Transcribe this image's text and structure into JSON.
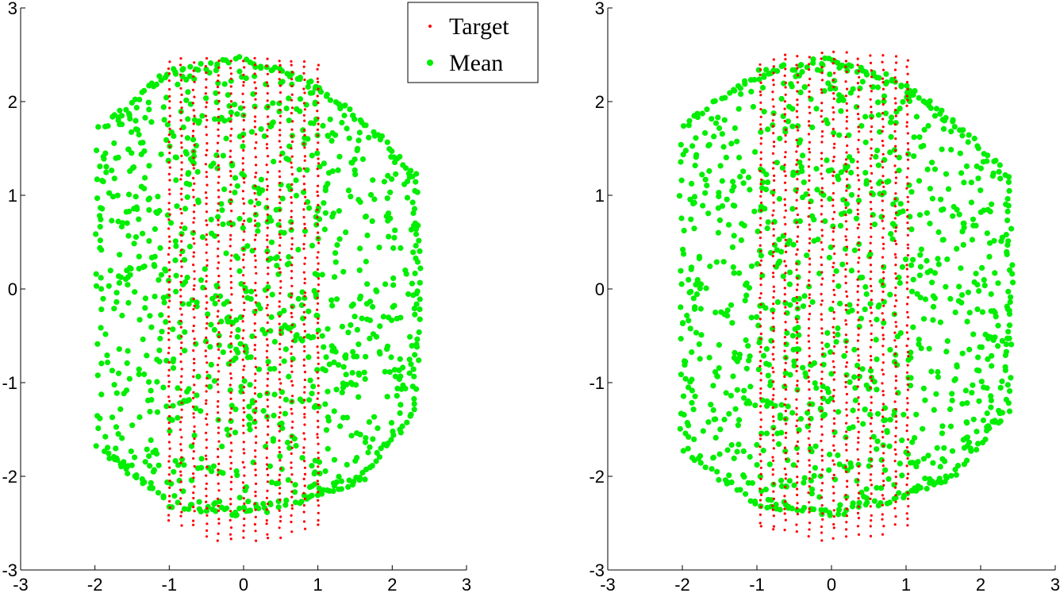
{
  "chart_data": [
    {
      "type": "scatter",
      "title": "",
      "xlabel": "",
      "ylabel": "",
      "xlim": [
        -3,
        3
      ],
      "ylim": [
        -3,
        3
      ],
      "xticks": [
        "-3",
        "-2",
        "-1",
        "0",
        "1",
        "2",
        "3"
      ],
      "yticks": [
        "3",
        "2",
        "1",
        "0",
        "-1",
        "-2",
        "-3"
      ],
      "grid": false,
      "legend": {
        "placement": "top-right",
        "entries": [
          "Target",
          "Mean"
        ]
      },
      "series": [
        {
          "name": "Target",
          "color": "#ff0000",
          "marker": "small-dot",
          "columns_x": [
            -1.0,
            -0.84,
            -0.67,
            -0.5,
            -0.34,
            -0.17,
            0.0,
            0.16,
            0.32,
            0.49,
            0.65,
            0.82,
            1.0
          ],
          "y_min": -2.72,
          "y_max": 2.5
        },
        {
          "name": "Mean",
          "color": "#00ee00",
          "marker": "large-dot",
          "region_polygon": [
            [
              -1.95,
              -1.7
            ],
            [
              -1.95,
              1.7
            ],
            [
              -1.0,
              2.3
            ],
            [
              0.0,
              2.45
            ],
            [
              0.9,
              2.2
            ],
            [
              1.6,
              1.8
            ],
            [
              2.3,
              1.2
            ],
            [
              2.35,
              0.0
            ],
            [
              2.3,
              -1.3
            ],
            [
              1.6,
              -2.0
            ],
            [
              1.0,
              -2.2
            ],
            [
              0.0,
              -2.4
            ],
            [
              -1.0,
              -2.3
            ]
          ]
        }
      ]
    },
    {
      "type": "scatter",
      "title": "",
      "xlabel": "",
      "ylabel": "",
      "xlim": [
        -3,
        3
      ],
      "ylim": [
        -3,
        3
      ],
      "xticks": [
        "-3",
        "-2",
        "-1",
        "0",
        "1",
        "2",
        "3"
      ],
      "yticks": [
        "3",
        "2",
        "1",
        "0",
        "-1",
        "-2",
        "-3"
      ],
      "grid": false,
      "series": [
        {
          "name": "Target",
          "color": "#ff0000",
          "marker": "small-dot",
          "columns_x": [
            -0.95,
            -0.78,
            -0.62,
            -0.46,
            -0.3,
            -0.13,
            0.03,
            0.2,
            0.36,
            0.53,
            0.69,
            0.86,
            1.02
          ],
          "y_min": -2.7,
          "y_max": 2.6
        },
        {
          "name": "Mean",
          "color": "#00ee00",
          "marker": "large-dot",
          "region_polygon": [
            [
              -2.0,
              -1.7
            ],
            [
              -2.0,
              1.75
            ],
            [
              -1.0,
              2.3
            ],
            [
              0.0,
              2.45
            ],
            [
              0.9,
              2.2
            ],
            [
              1.6,
              1.8
            ],
            [
              2.35,
              1.2
            ],
            [
              2.4,
              0.0
            ],
            [
              2.35,
              -1.3
            ],
            [
              1.6,
              -2.0
            ],
            [
              1.0,
              -2.2
            ],
            [
              0.0,
              -2.4
            ],
            [
              -1.0,
              -2.3
            ]
          ]
        }
      ]
    }
  ]
}
